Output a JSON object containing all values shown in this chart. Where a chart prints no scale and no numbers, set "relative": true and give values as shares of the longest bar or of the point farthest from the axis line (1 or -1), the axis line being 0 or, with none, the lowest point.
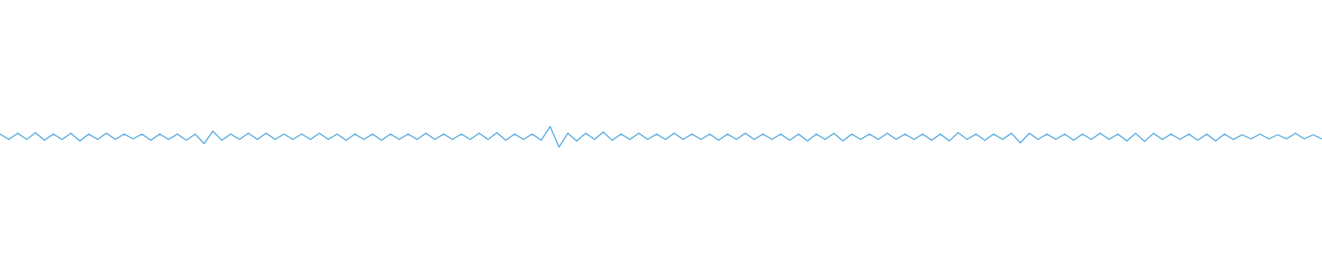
{
  "chart_data": {
    "type": "line",
    "relative": true,
    "categories": [
      null,
      null,
      null,
      null,
      null,
      null,
      null,
      null,
      null,
      null,
      null,
      null,
      null,
      null,
      null,
      null,
      null,
      null,
      null,
      null,
      null,
      null,
      null,
      null,
      null,
      null,
      null,
      null,
      null,
      null,
      null,
      null,
      null,
      null,
      null,
      null,
      null,
      null,
      null,
      null,
      null,
      null,
      null,
      null,
      null,
      null,
      null,
      null,
      null,
      null,
      null,
      null,
      null,
      null,
      null,
      null,
      null,
      null,
      null,
      null,
      null,
      null,
      null,
      null,
      null,
      null,
      null,
      null,
      null,
      null,
      null,
      null,
      null,
      null,
      null,
      null,
      null,
      null,
      null,
      null,
      null,
      null,
      null,
      null,
      null,
      null,
      null,
      null,
      null,
      null,
      null,
      null,
      null,
      null,
      null,
      null,
      null,
      null,
      null,
      null,
      null,
      null,
      null,
      null,
      null,
      null,
      null,
      null,
      null,
      null,
      null,
      null,
      null,
      null,
      null,
      null,
      null,
      null,
      null,
      null,
      null,
      null,
      null,
      null,
      null,
      null,
      null,
      null,
      null,
      null,
      null,
      null,
      null,
      null,
      null,
      null,
      null,
      null,
      null,
      null,
      null,
      null,
      null,
      null,
      null,
      null,
      null,
      null,
      null,
      null
    ],
    "series": [
      {
        "color": "#5faee3",
        "values": [
          0.63,
          0.37,
          0.67,
          0.37,
          0.7,
          0.33,
          0.63,
          0.37,
          0.67,
          0.3,
          0.63,
          0.37,
          0.67,
          0.37,
          0.63,
          0.4,
          0.63,
          0.33,
          0.63,
          0.37,
          0.63,
          0.33,
          0.63,
          0.17,
          0.77,
          0.33,
          0.63,
          0.37,
          0.67,
          0.37,
          0.67,
          0.37,
          0.63,
          0.37,
          0.63,
          0.37,
          0.67,
          0.37,
          0.63,
          0.33,
          0.63,
          0.37,
          0.63,
          0.33,
          0.63,
          0.37,
          0.63,
          0.37,
          0.67,
          0.37,
          0.63,
          0.37,
          0.63,
          0.37,
          0.67,
          0.37,
          0.7,
          0.33,
          0.63,
          0.37,
          0.63,
          0.33,
          1,
          0,
          0.67,
          0.3,
          0.67,
          0.37,
          0.73,
          0.33,
          0.63,
          0.37,
          0.67,
          0.37,
          0.63,
          0.37,
          0.67,
          0.37,
          0.63,
          0.37,
          0.63,
          0.33,
          0.63,
          0.37,
          0.67,
          0.37,
          0.63,
          0.37,
          0.63,
          0.33,
          0.63,
          0.3,
          0.63,
          0.37,
          0.67,
          0.3,
          0.63,
          0.37,
          0.63,
          0.37,
          0.67,
          0.37,
          0.63,
          0.37,
          0.63,
          0.33,
          0.63,
          0.3,
          0.7,
          0.37,
          0.63,
          0.33,
          0.63,
          0.37,
          0.67,
          0.2,
          0.67,
          0.37,
          0.63,
          0.37,
          0.63,
          0.33,
          0.63,
          0.37,
          0.67,
          0.37,
          0.63,
          0.3,
          0.67,
          0.27,
          0.67,
          0.37,
          0.63,
          0.37,
          0.63,
          0.33,
          0.63,
          0.3,
          0.63,
          0.37,
          0.6,
          0.4,
          0.63,
          0.4,
          0.6,
          0.4,
          0.67,
          0.4,
          0.6,
          0.4
        ]
      }
    ]
  }
}
